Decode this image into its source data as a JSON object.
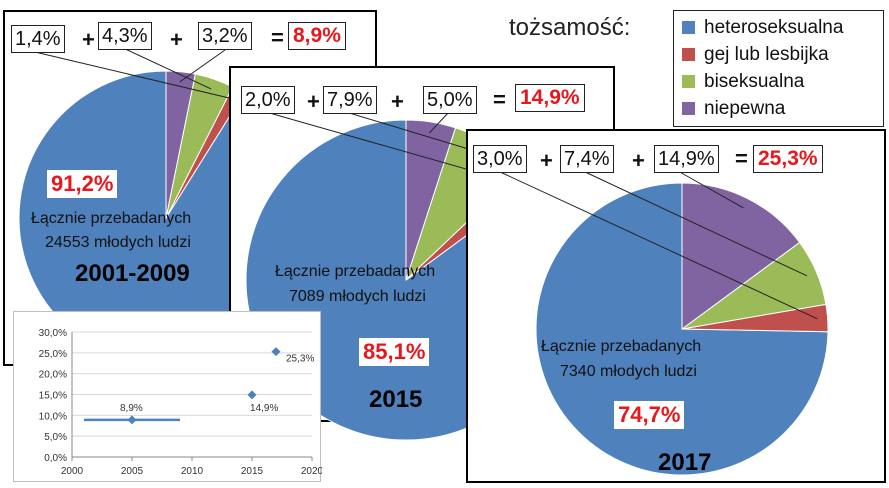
{
  "legend": {
    "title": "tożsamość:",
    "items": [
      {
        "label": "heteroseksualna",
        "color": "#4f81bd"
      },
      {
        "label": "gej lub lesbijka",
        "color": "#c0504d"
      },
      {
        "label": "biseksualna",
        "color": "#9bbb59"
      },
      {
        "label": "niepewna",
        "color": "#8064a2"
      }
    ]
  },
  "chart_data": [
    {
      "type": "pie",
      "title": "2001-2009",
      "categories": [
        "heteroseksualna",
        "gej lub lesbijka",
        "biseksualna",
        "niepewna"
      ],
      "values": [
        91.2,
        1.4,
        4.3,
        3.2
      ],
      "value_labels": [
        "91,2%",
        "1,4%",
        "4,3%",
        "3,2%"
      ],
      "sum_label": "8,9%",
      "note_line1": "Łącznie przebadanych",
      "note_line2": "24553 młodych ludzi"
    },
    {
      "type": "pie",
      "title": "2015",
      "categories": [
        "heteroseksualna",
        "gej lub lesbijka",
        "biseksualna",
        "niepewna"
      ],
      "values": [
        85.1,
        2.0,
        7.9,
        5.0
      ],
      "value_labels": [
        "85,1%",
        "2,0%",
        "7,9%",
        "5,0%"
      ],
      "sum_label": "14,9%",
      "note_line1": "Łącznie przebadanych",
      "note_line2": "7089 młodych ludzi"
    },
    {
      "type": "pie",
      "title": "2017",
      "categories": [
        "heteroseksualna",
        "gej lub lesbijka",
        "biseksualna",
        "niepewna"
      ],
      "values": [
        74.7,
        3.0,
        7.4,
        14.9
      ],
      "value_labels": [
        "74,7%",
        "3,0%",
        "7,4%",
        "14,9%"
      ],
      "sum_label": "25,3%",
      "note_line1": "Łącznie przebadanych",
      "note_line2": "7340 młodych ludzi"
    },
    {
      "type": "scatter",
      "x": [
        2005,
        2015,
        2017
      ],
      "y": [
        8.9,
        14.9,
        25.3
      ],
      "point_labels": [
        "8,9%",
        "14,9%",
        "25,3%"
      ],
      "range_line": {
        "x": [
          2001,
          2009
        ],
        "y": 8.9
      },
      "xlim": [
        2000,
        2020
      ],
      "ylim": [
        0,
        30
      ],
      "xticks": [
        "2000",
        "2005",
        "2010",
        "2015",
        "2020"
      ],
      "yticks": [
        "0,0%",
        "5,0%",
        "10,0%",
        "15,0%",
        "20,0%",
        "25,0%",
        "30,0%"
      ],
      "grid": true,
      "color": "#4f81bd"
    }
  ]
}
